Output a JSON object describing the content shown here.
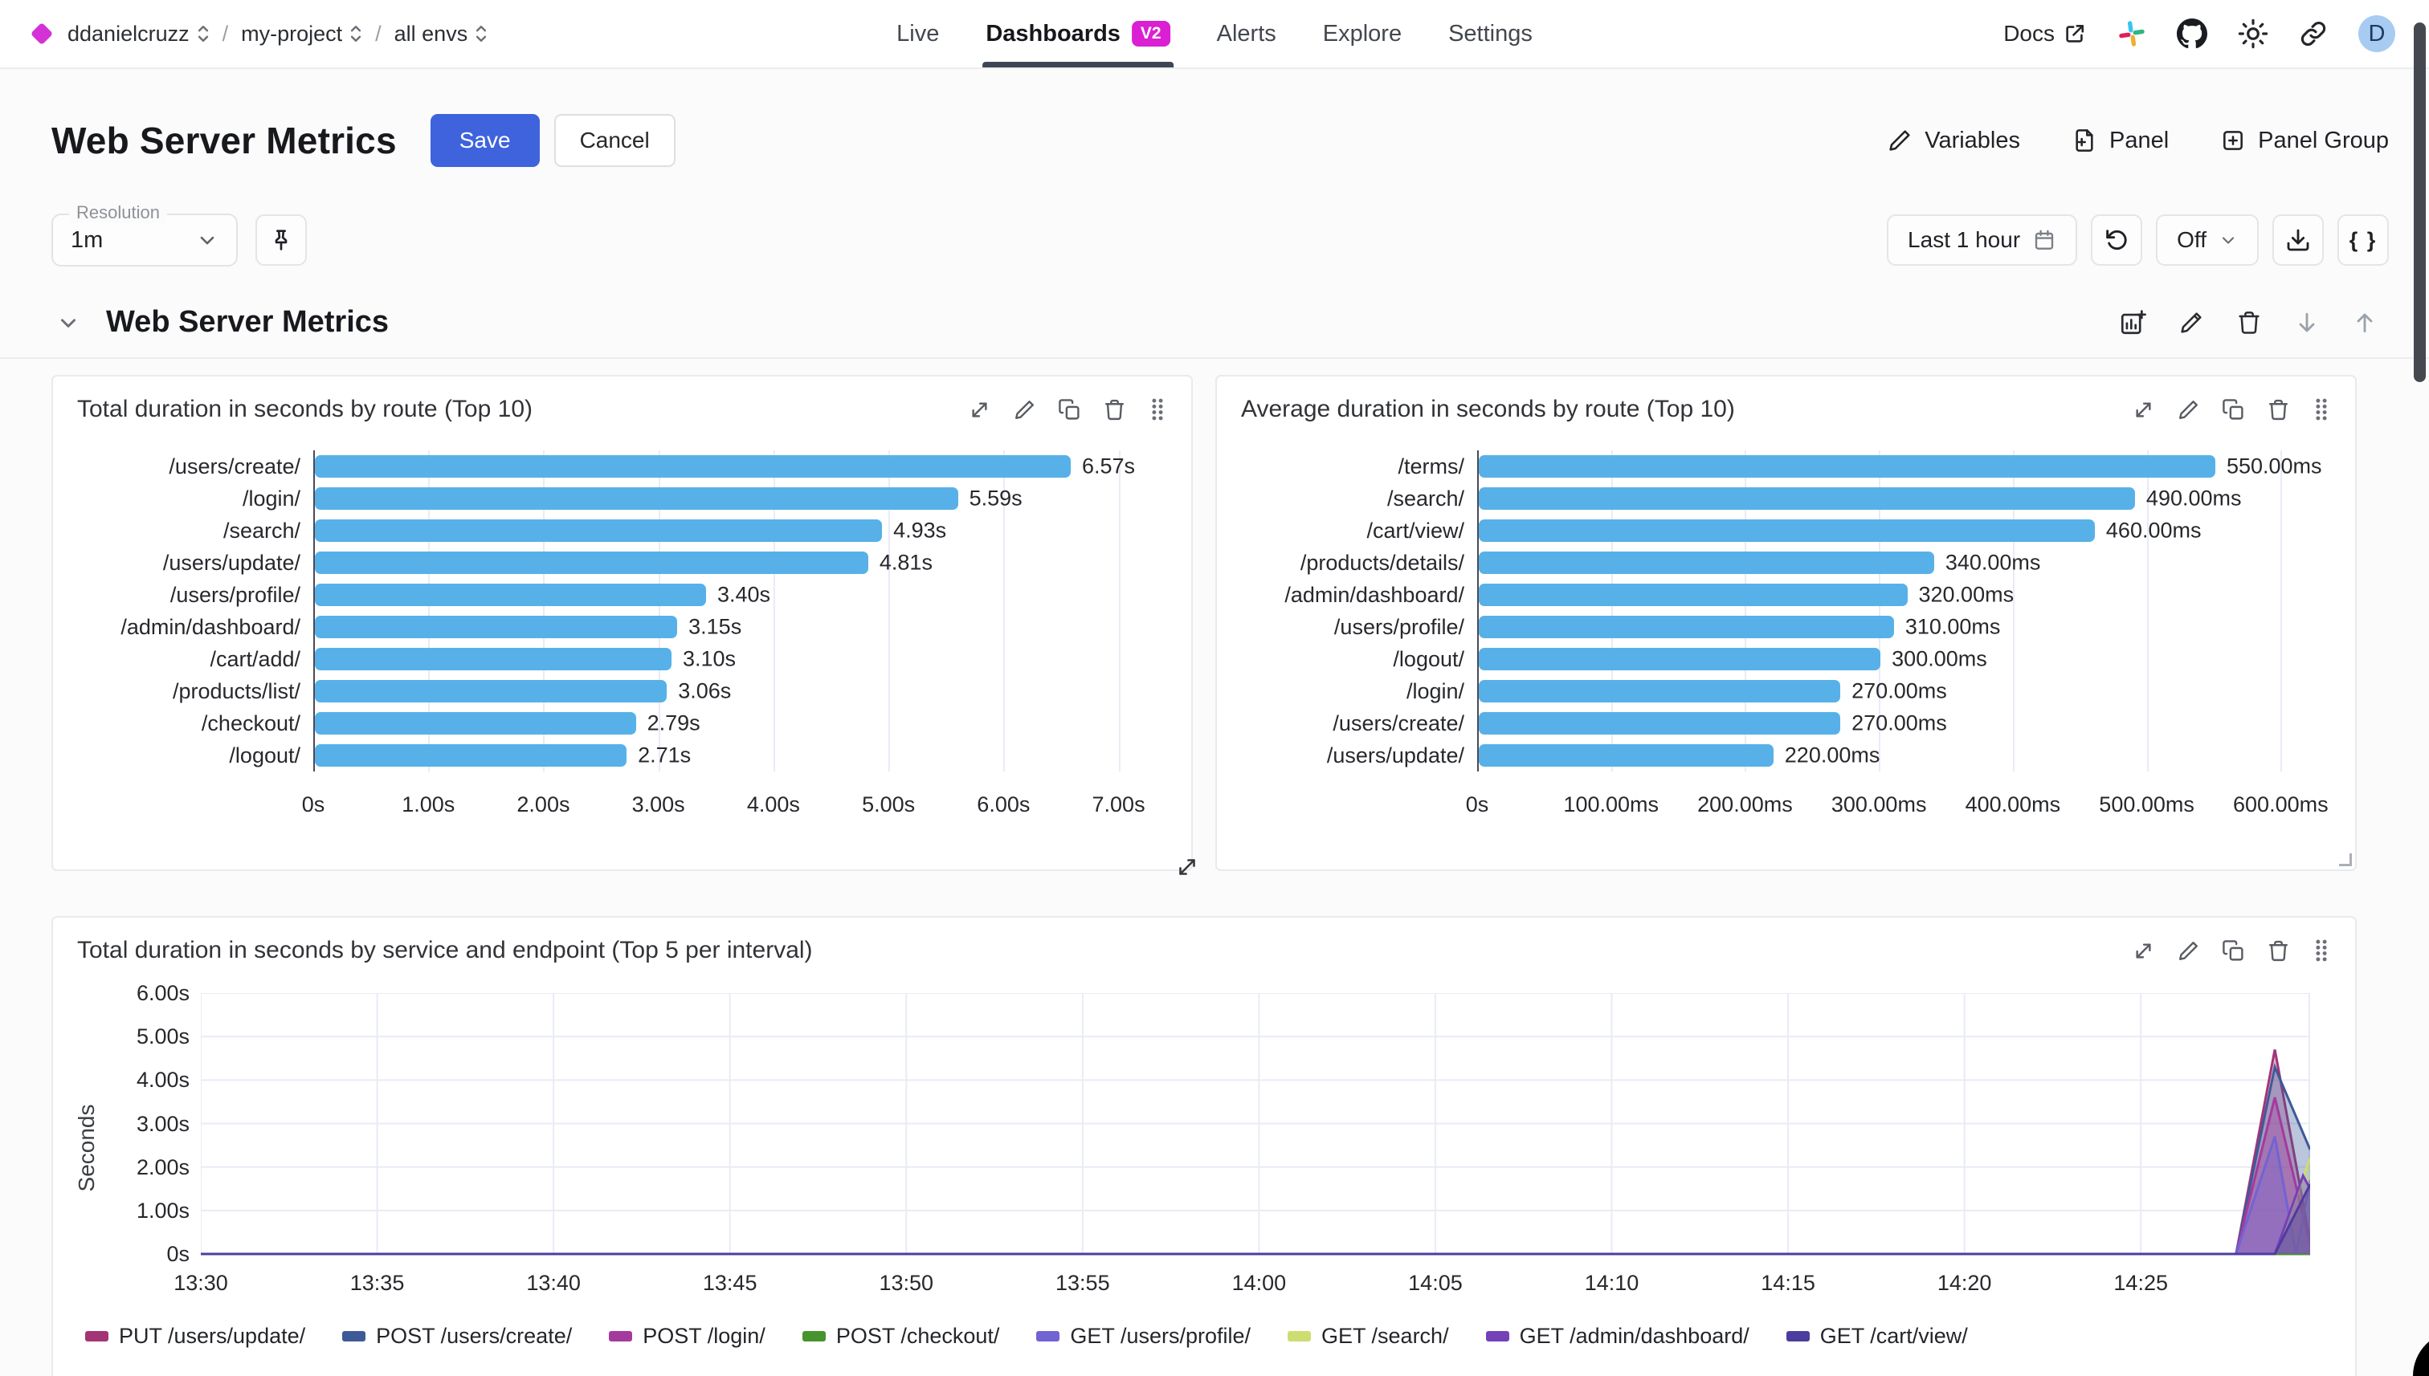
{
  "colors": {
    "accent_blue": "#3e63dd",
    "badge_magenta": "#db1fd3",
    "brand_diamond": "#d431d6",
    "bar_blue": "#57b1e8",
    "grid_line": "#e9ebf5",
    "avatar_bg": "#a8ccf1"
  },
  "navbar": {
    "breadcrumb": [
      {
        "label": "ddanielcruzz"
      },
      {
        "label": "my-project"
      },
      {
        "label": "all envs"
      }
    ],
    "tabs": [
      {
        "label": "Live",
        "active": false
      },
      {
        "label": "Dashboards",
        "active": true,
        "badge": "V2"
      },
      {
        "label": "Alerts",
        "active": false
      },
      {
        "label": "Explore",
        "active": false
      },
      {
        "label": "Settings",
        "active": false
      }
    ],
    "docs_label": "Docs",
    "avatar_letter": "D"
  },
  "header": {
    "title": "Web Server Metrics",
    "save_label": "Save",
    "cancel_label": "Cancel",
    "actions": [
      {
        "label": "Variables"
      },
      {
        "label": "Panel"
      },
      {
        "label": "Panel Group"
      }
    ]
  },
  "controls": {
    "resolution_label": "Resolution",
    "resolution_value": "1m",
    "time_range": "Last 1 hour",
    "refresh_value": "Off",
    "braces_label": "{ }"
  },
  "section": {
    "title": "Web Server Metrics"
  },
  "chart_data": [
    {
      "type": "bar",
      "orientation": "horizontal",
      "title": "Total duration in seconds by route (Top 10)",
      "categories": [
        "/users/create/",
        "/login/",
        "/search/",
        "/users/update/",
        "/users/profile/",
        "/admin/dashboard/",
        "/cart/add/",
        "/products/list/",
        "/checkout/",
        "/logout/"
      ],
      "values": [
        6.57,
        5.59,
        4.93,
        4.81,
        3.4,
        3.15,
        3.1,
        3.06,
        2.79,
        2.71
      ],
      "value_labels": [
        "6.57s",
        "5.59s",
        "4.93s",
        "4.81s",
        "3.40s",
        "3.15s",
        "3.10s",
        "3.06s",
        "2.79s",
        "2.71s"
      ],
      "xticks": [
        "0s",
        "1.00s",
        "2.00s",
        "3.00s",
        "4.00s",
        "5.00s",
        "6.00s",
        "7.00s"
      ],
      "xtick_values": [
        0,
        1,
        2,
        3,
        4,
        5,
        6,
        7
      ],
      "xmax": 7.45,
      "bar_color": "#57b1e8",
      "grid": true
    },
    {
      "type": "bar",
      "orientation": "horizontal",
      "title": "Average duration in seconds by route (Top 10)",
      "categories": [
        "/terms/",
        "/search/",
        "/cart/view/",
        "/products/details/",
        "/admin/dashboard/",
        "/users/profile/",
        "/logout/",
        "/login/",
        "/users/create/",
        "/users/update/"
      ],
      "values": [
        550,
        490,
        460,
        340,
        320,
        310,
        300,
        270,
        270,
        220
      ],
      "value_labels": [
        "550.00ms",
        "490.00ms",
        "460.00ms",
        "340.00ms",
        "320.00ms",
        "310.00ms",
        "300.00ms",
        "270.00ms",
        "270.00ms",
        "220.00ms"
      ],
      "xticks": [
        "0s",
        "100.00ms",
        "200.00ms",
        "300.00ms",
        "400.00ms",
        "500.00ms",
        "600.00ms"
      ],
      "xtick_values": [
        0,
        100,
        200,
        300,
        400,
        500,
        600
      ],
      "xmax": 640,
      "bar_color": "#57b1e8",
      "grid": true
    },
    {
      "type": "area",
      "title": "Total duration in seconds by service and endpoint (Top 5 per interval)",
      "ylabel": "Seconds",
      "yticks": [
        "0s",
        "1.00s",
        "2.00s",
        "3.00s",
        "4.00s",
        "5.00s",
        "6.00s"
      ],
      "ytick_values": [
        0,
        1,
        2,
        3,
        4,
        5,
        6
      ],
      "ymax": 6,
      "xticks": [
        "13:30",
        "13:35",
        "13:40",
        "13:45",
        "13:50",
        "13:55",
        "14:00",
        "14:05",
        "14:10",
        "14:15",
        "14:20",
        "14:25"
      ],
      "xtick_minutes": [
        0,
        5,
        10,
        15,
        20,
        25,
        30,
        35,
        40,
        45,
        50,
        55
      ],
      "x_min": 0,
      "x_max": 59.8,
      "grid": true,
      "legend_position": "bottom",
      "series": [
        {
          "name": "PUT /users/update/",
          "color": "#a33577",
          "points": [
            [
              0,
              0
            ],
            [
              57.7,
              0
            ],
            [
              58.8,
              4.7
            ],
            [
              59.8,
              0.3
            ]
          ]
        },
        {
          "name": "POST /users/create/",
          "color": "#3d5a98",
          "points": [
            [
              0,
              0
            ],
            [
              57.7,
              0
            ],
            [
              58.8,
              4.3
            ],
            [
              59.8,
              2.4
            ]
          ]
        },
        {
          "name": "POST /login/",
          "color": "#a43a9e",
          "points": [
            [
              0,
              0
            ],
            [
              57.7,
              0
            ],
            [
              58.8,
              3.6
            ],
            [
              59.8,
              0.2
            ]
          ]
        },
        {
          "name": "POST /checkout/",
          "color": "#47942e",
          "points": [
            [
              0,
              0
            ],
            [
              59.8,
              0
            ]
          ]
        },
        {
          "name": "GET /users/profile/",
          "color": "#7263d3",
          "points": [
            [
              0,
              0
            ],
            [
              57.7,
              0
            ],
            [
              58.8,
              2.7
            ],
            [
              59.4,
              0
            ],
            [
              59.8,
              1.7
            ]
          ]
        },
        {
          "name": "GET /search/",
          "color": "#cddd72",
          "points": [
            [
              0,
              0
            ],
            [
              58.8,
              0
            ],
            [
              59.8,
              2.2
            ]
          ]
        },
        {
          "name": "GET /admin/dashboard/",
          "color": "#7441b8",
          "points": [
            [
              0,
              0
            ],
            [
              58.8,
              0
            ],
            [
              59.6,
              1.8
            ],
            [
              59.8,
              1.5
            ]
          ]
        },
        {
          "name": "GET /cart/view/",
          "color": "#4b3da0",
          "points": [
            [
              0,
              0
            ],
            [
              58.8,
              0
            ],
            [
              59.8,
              1.6
            ]
          ]
        }
      ]
    }
  ]
}
